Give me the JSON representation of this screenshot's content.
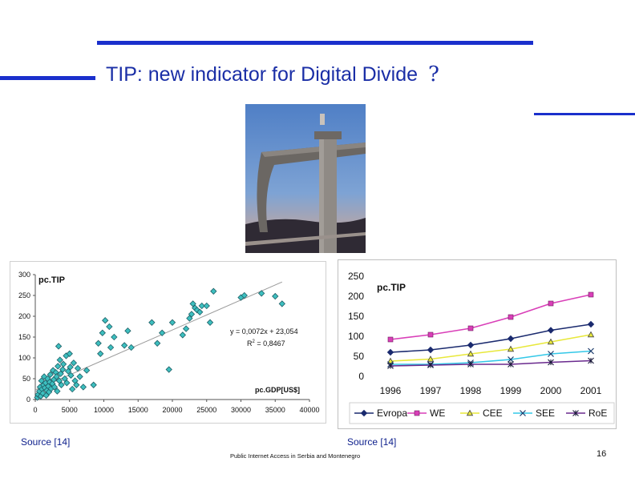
{
  "slide": {
    "title": "TIP: new indicator for Digital Divide",
    "title_mark": "?",
    "source_left": "Source [14]",
    "source_right": "Source [14]",
    "footer": "Public Internet Access in Serbia and Montenegro",
    "page_number": "16",
    "accent_color": "#1a2fcc"
  },
  "photo": {
    "subject": "bridge-ramp-photo"
  },
  "chart_data": [
    {
      "type": "scatter",
      "ylabel": "pc.TIP",
      "xlabel": "pc.GDP[US$]",
      "xlim": [
        0,
        40000
      ],
      "ylim": [
        0,
        300
      ],
      "x_ticks": [
        "0",
        "5000",
        "10000",
        "15000",
        "20000",
        "25000",
        "30000",
        "35000",
        "40000"
      ],
      "y_ticks": [
        "0",
        "50",
        "100",
        "150",
        "200",
        "250",
        "300"
      ],
      "equation": "y = 0,0072x + 23,054",
      "r2_label": "R",
      "r2_sup": "2",
      "r2_value": " = 0,8467",
      "trendline": {
        "slope": 0.0072,
        "intercept": 23.054,
        "x_range": [
          0,
          36000
        ]
      },
      "marker_color": "#3dbfbf",
      "points": [
        [
          300,
          5
        ],
        [
          400,
          12
        ],
        [
          600,
          20
        ],
        [
          700,
          30
        ],
        [
          800,
          8
        ],
        [
          900,
          45
        ],
        [
          1000,
          25
        ],
        [
          1100,
          15
        ],
        [
          1200,
          35
        ],
        [
          1300,
          55
        ],
        [
          1400,
          28
        ],
        [
          1500,
          40
        ],
        [
          1600,
          10
        ],
        [
          1700,
          22
        ],
        [
          1800,
          50
        ],
        [
          1900,
          32
        ],
        [
          2000,
          18
        ],
        [
          2100,
          42
        ],
        [
          2200,
          60
        ],
        [
          2300,
          26
        ],
        [
          2500,
          38
        ],
        [
          2600,
          70
        ],
        [
          2700,
          48
        ],
        [
          2800,
          30
        ],
        [
          3000,
          65
        ],
        [
          3100,
          55
        ],
        [
          3200,
          20
        ],
        [
          3300,
          80
        ],
        [
          3400,
          128
        ],
        [
          3500,
          45
        ],
        [
          3600,
          95
        ],
        [
          3700,
          62
        ],
        [
          3800,
          35
        ],
        [
          4000,
          72
        ],
        [
          4100,
          85
        ],
        [
          4300,
          50
        ],
        [
          4500,
          105
        ],
        [
          4600,
          40
        ],
        [
          4800,
          68
        ],
        [
          5000,
          110
        ],
        [
          5100,
          78
        ],
        [
          5200,
          58
        ],
        [
          5400,
          25
        ],
        [
          5600,
          88
        ],
        [
          5800,
          45
        ],
        [
          6000,
          35
        ],
        [
          6200,
          75
        ],
        [
          6500,
          55
        ],
        [
          7000,
          30
        ],
        [
          7500,
          70
        ],
        [
          8500,
          35
        ],
        [
          9200,
          135
        ],
        [
          9500,
          110
        ],
        [
          9800,
          160
        ],
        [
          10200,
          190
        ],
        [
          10800,
          175
        ],
        [
          11000,
          125
        ],
        [
          11500,
          150
        ],
        [
          13000,
          130
        ],
        [
          13500,
          165
        ],
        [
          14000,
          125
        ],
        [
          17000,
          185
        ],
        [
          17800,
          135
        ],
        [
          18500,
          160
        ],
        [
          19500,
          72
        ],
        [
          20000,
          185
        ],
        [
          21500,
          155
        ],
        [
          22000,
          170
        ],
        [
          22500,
          195
        ],
        [
          22800,
          205
        ],
        [
          23000,
          230
        ],
        [
          23300,
          220
        ],
        [
          23600,
          215
        ],
        [
          24000,
          210
        ],
        [
          24300,
          225
        ],
        [
          25000,
          225
        ],
        [
          25500,
          185
        ],
        [
          26000,
          260
        ],
        [
          30000,
          245
        ],
        [
          30500,
          250
        ],
        [
          33000,
          255
        ],
        [
          35000,
          248
        ],
        [
          36000,
          230
        ]
      ]
    },
    {
      "type": "line",
      "ylabel": "pc.TIP",
      "categories": [
        "1996",
        "1997",
        "1998",
        "1999",
        "2000",
        "2001"
      ],
      "ylim": [
        0,
        250
      ],
      "y_ticks": [
        "0",
        "50",
        "100",
        "150",
        "200",
        "250"
      ],
      "legend_position": "bottom",
      "series": [
        {
          "name": "Evropa",
          "color": "#1a2a6e",
          "marker": "diamond",
          "values": [
            60,
            66,
            78,
            94,
            115,
            130
          ]
        },
        {
          "name": "WE",
          "color": "#d93fb8",
          "marker": "square",
          "values": [
            92,
            104,
            120,
            148,
            182,
            204
          ]
        },
        {
          "name": "CEE",
          "color": "#e8e83a",
          "marker": "triangle",
          "values": [
            38,
            43,
            56,
            68,
            86,
            104
          ]
        },
        {
          "name": "SEE",
          "color": "#33c8e8",
          "marker": "x",
          "values": [
            30,
            30,
            34,
            42,
            56,
            63
          ]
        },
        {
          "name": "RoE",
          "color": "#6a2a8e",
          "marker": "star",
          "values": [
            26,
            28,
            30,
            30,
            35,
            39
          ]
        }
      ]
    }
  ]
}
